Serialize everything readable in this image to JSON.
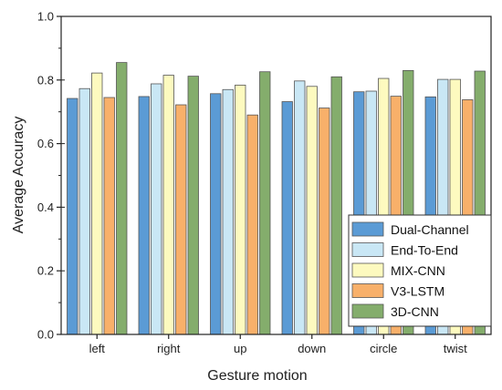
{
  "chart_data": {
    "type": "bar",
    "title": "",
    "xlabel": "Gesture motion",
    "ylabel": "Average Accuracy",
    "ylim": [
      0.0,
      1.0
    ],
    "yticks": [
      "0.0",
      "0.2",
      "0.4",
      "0.6",
      "0.8",
      "1.0"
    ],
    "categories": [
      "left",
      "right",
      "up",
      "down",
      "circle",
      "twist"
    ],
    "grid": false,
    "legend_position": "bottom-right",
    "series": [
      {
        "name": "Dual-Channel",
        "color": "#5b9bd5",
        "values": [
          0.742,
          0.748,
          0.757,
          0.732,
          0.763,
          0.747
        ]
      },
      {
        "name": "End-To-End",
        "color": "#c9e7f5",
        "values": [
          0.773,
          0.788,
          0.77,
          0.797,
          0.765,
          0.802
        ]
      },
      {
        "name": "MIX-CNN",
        "color": "#fdfabf",
        "values": [
          0.822,
          0.815,
          0.784,
          0.78,
          0.805,
          0.802
        ]
      },
      {
        "name": "V3-LSTM",
        "color": "#f8b06a",
        "values": [
          0.745,
          0.722,
          0.69,
          0.712,
          0.749,
          0.738
        ]
      },
      {
        "name": "3D-CNN",
        "color": "#84ad6c",
        "values": [
          0.855,
          0.812,
          0.826,
          0.81,
          0.83,
          0.828
        ]
      }
    ]
  }
}
